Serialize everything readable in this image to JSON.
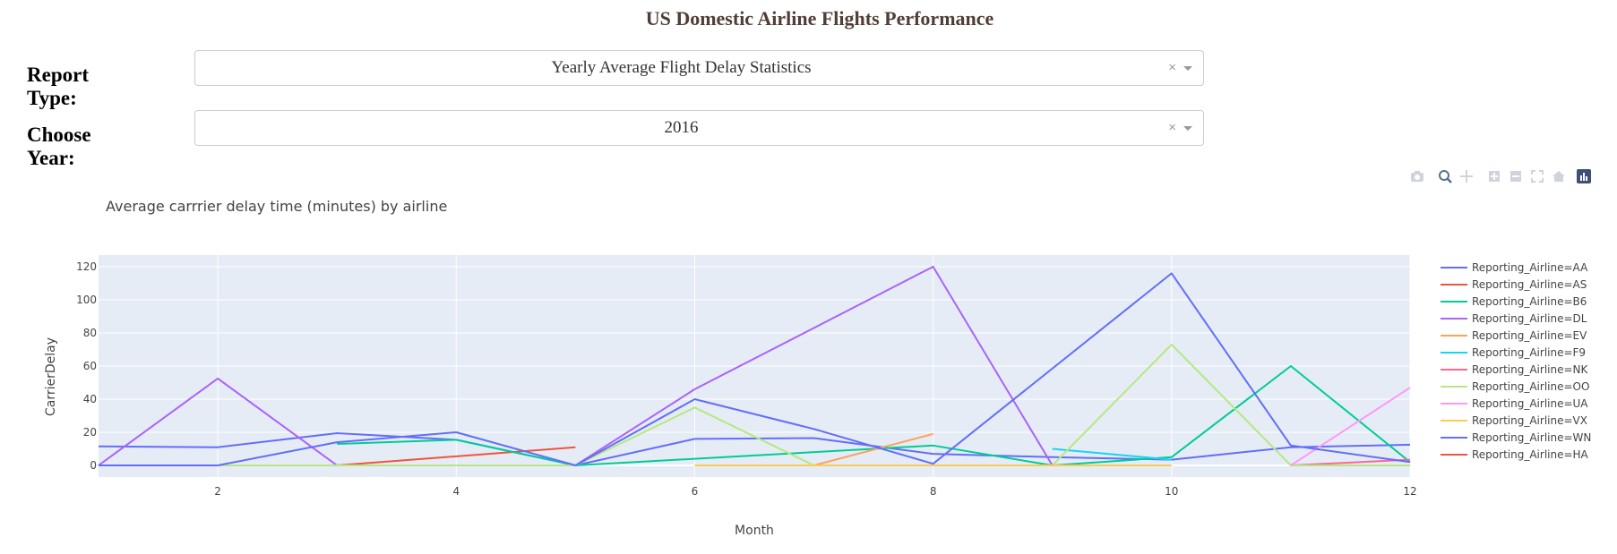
{
  "page": {
    "title": "US Domestic Airline Flights Performance"
  },
  "report_type": {
    "label": "Report Type:",
    "value": "Yearly Average Flight Delay Statistics",
    "clear_icon": "×"
  },
  "year": {
    "label": "Choose Year:",
    "value": "2016",
    "clear_icon": "×"
  },
  "modebar": {
    "icons": [
      "camera-icon",
      "zoom-icon",
      "pan-icon",
      "zoom-in-icon",
      "zoom-out-icon",
      "autoscale-icon",
      "reset-axes-icon",
      "plotly-logo-icon"
    ]
  },
  "chart_data": {
    "type": "line",
    "title": "Average carrrier delay time (minutes) by airline",
    "xlabel": "Month",
    "ylabel": "CarrierDelay",
    "xlim": [
      1,
      12
    ],
    "ylim": [
      -7,
      127
    ],
    "xticks": [
      2,
      4,
      6,
      8,
      10,
      12
    ],
    "yticks": [
      0,
      20,
      40,
      60,
      80,
      100,
      120
    ],
    "grid": true,
    "legend_position": "right",
    "series": [
      {
        "name": "Reporting_Airline=AA",
        "color": "#636efa",
        "x": [
          1,
          2,
          3,
          4,
          5,
          6,
          7,
          8,
          9,
          10,
          11,
          12
        ],
        "y": [
          11.5,
          11,
          19.5,
          15.5,
          0,
          16,
          16.5,
          7,
          5,
          3.5,
          11,
          12.5
        ]
      },
      {
        "name": "Reporting_Airline=AS",
        "color": "#EF553B",
        "x": [
          3,
          4,
          5
        ],
        "y": [
          0,
          5.5,
          11
        ]
      },
      {
        "name": "Reporting_Airline=B6",
        "color": "#00cc96",
        "x": [
          3,
          4,
          5,
          8,
          9,
          10,
          11,
          12
        ],
        "y": [
          13,
          15.5,
          0,
          12,
          0,
          5,
          60,
          2
        ]
      },
      {
        "name": "Reporting_Airline=DL",
        "color": "#ab63fa",
        "x": [
          1,
          2,
          3,
          5,
          6,
          8,
          9
        ],
        "y": [
          0,
          52.5,
          0,
          0,
          46,
          120,
          0
        ]
      },
      {
        "name": "Reporting_Airline=EV",
        "color": "#FFA15A",
        "x": [
          6,
          7,
          8
        ],
        "y": [
          0,
          0,
          19
        ]
      },
      {
        "name": "Reporting_Airline=F9",
        "color": "#19d3f3",
        "x": [
          9,
          10
        ],
        "y": [
          10,
          3.5
        ]
      },
      {
        "name": "Reporting_Airline=NK",
        "color": "#FF6692",
        "x": [
          11,
          12
        ],
        "y": [
          0,
          3.5
        ]
      },
      {
        "name": "Reporting_Airline=OO",
        "color": "#B6E880",
        "x": [
          2,
          3,
          4,
          5,
          6,
          7,
          8,
          9,
          10,
          11,
          12
        ],
        "y": [
          0,
          0,
          0,
          0,
          35,
          0,
          0,
          0,
          73,
          0,
          0
        ]
      },
      {
        "name": "Reporting_Airline=UA",
        "color": "#FF97FF",
        "x": [
          11,
          12
        ],
        "y": [
          0,
          47
        ]
      },
      {
        "name": "Reporting_Airline=VX",
        "color": "#FECB52",
        "x": [
          6,
          7,
          8,
          9,
          10
        ],
        "y": [
          0,
          0,
          0,
          0,
          0
        ]
      },
      {
        "name": "Reporting_Airline=WN",
        "color": "#636efa",
        "x": [
          1,
          2,
          3,
          4,
          5,
          6,
          7,
          8,
          10,
          11,
          12
        ],
        "y": [
          0,
          0,
          14,
          20,
          0,
          40,
          22,
          1,
          116,
          12,
          2
        ]
      },
      {
        "name": "Reporting_Airline=HA",
        "color": "#EF553B",
        "x": [],
        "y": []
      }
    ]
  }
}
